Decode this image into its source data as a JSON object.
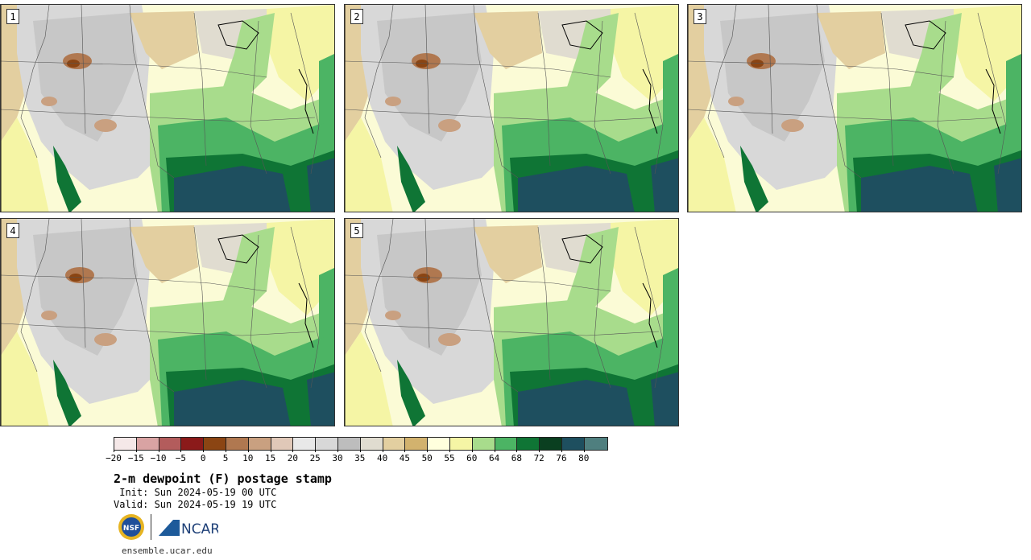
{
  "panels": [
    {
      "label": "1"
    },
    {
      "label": "2"
    },
    {
      "label": "3"
    },
    {
      "label": "4"
    },
    {
      "label": "5"
    }
  ],
  "colorbar": {
    "ticks": [
      "−20",
      "−15",
      "−10",
      "−5",
      "0",
      "5",
      "10",
      "15",
      "20",
      "25",
      "30",
      "35",
      "40",
      "45",
      "50",
      "55",
      "60",
      "64",
      "68",
      "72",
      "76",
      "80"
    ],
    "colors": [
      "#f5e8e8",
      "#d9a3a3",
      "#b35c5c",
      "#8b1a1a",
      "#8b4513",
      "#b07850",
      "#c9a080",
      "#e0c8b8",
      "#e8e8e8",
      "#d8d8d8",
      "#bdbdbd",
      "#e0dcd0",
      "#e3cfa0",
      "#d2b26e",
      "#ffffdd",
      "#f5f5a5",
      "#a8dc8c",
      "#4cb464",
      "#0f7535",
      "#0a3f20",
      "#1e4f5f",
      "#4f7f7f"
    ]
  },
  "title": "2-m dewpoint (F) postage stamp",
  "init_line": " Init: Sun 2024-05-19 00 UTC",
  "valid_line": "Valid: Sun 2024-05-19 19 UTC",
  "logos": {
    "nsf": "NSF",
    "ncar": "NCAR"
  },
  "url": "ensemble.ucar.edu"
}
